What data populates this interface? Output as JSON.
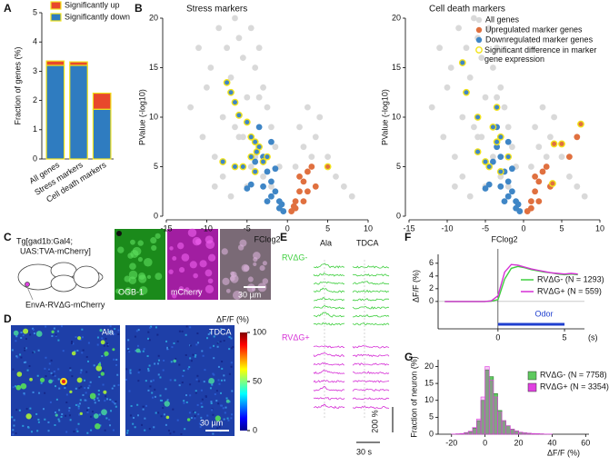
{
  "panel_labels": [
    "A",
    "B",
    "C",
    "D",
    "E",
    "F",
    "G"
  ],
  "chart_data": [
    {
      "type": "stacked_bar",
      "ylabel": "Fraction of genes (%)",
      "categories": [
        "All genes",
        "Stress markers",
        "Cell death markers"
      ],
      "series": [
        {
          "name": "Significantly down",
          "color": "#2f7cc0",
          "values": [
            3.2,
            3.2,
            1.7
          ]
        },
        {
          "name": "Significantly up",
          "color": "#e8482c",
          "values": [
            0.15,
            0.12,
            0.55
          ]
        }
      ],
      "edgecolor": "#f2e31b",
      "ylim": [
        0,
        5
      ],
      "yticks": [
        0,
        1,
        2,
        3,
        4,
        5
      ],
      "legend": "upper left"
    },
    {
      "type": "scatter",
      "title": "Stress markers",
      "xlabel": "FClog2",
      "ylabel": "PValue (-log10)",
      "xlim": [
        -15,
        10
      ],
      "ylim": [
        0,
        20
      ],
      "xticks": [
        -15,
        -10,
        -5,
        0,
        5,
        10
      ],
      "yticks": [
        0,
        5,
        10,
        15,
        20
      ],
      "series": [
        {
          "color": "#d9d9d9",
          "x": [
            -12,
            -11,
            -10.5,
            -10,
            -9.5,
            -9,
            -8.5,
            -8,
            -7.5,
            -7,
            -6.5,
            -6,
            -5.5,
            -5,
            -4.5,
            -4,
            -3.5,
            -3,
            -2.5,
            -2,
            -1.5,
            -1,
            -9,
            -8,
            -7,
            -6,
            -5,
            -4,
            -3,
            -2,
            1,
            1.5,
            2,
            2.5,
            3,
            3.5,
            4,
            5,
            6,
            7,
            8,
            -6.5,
            -5.5,
            -4.5,
            -3.5
          ],
          "values": [
            11,
            17,
            8,
            13,
            15,
            6,
            19,
            10,
            17,
            14,
            20,
            18,
            16,
            12,
            19,
            15,
            17,
            13,
            11,
            9,
            7,
            5,
            3,
            4,
            2,
            8,
            3,
            6,
            4,
            3,
            5,
            9,
            7,
            11,
            6,
            8,
            10,
            6,
            4,
            3,
            2,
            9,
            8,
            5,
            12
          ]
        },
        {
          "color": "#e0703f",
          "x": [
            0.5,
            1,
            1.5,
            2,
            2.5,
            3,
            1,
            2,
            3.5,
            1.5,
            0.8,
            2.5
          ],
          "values": [
            0.5,
            1.5,
            2.5,
            3.5,
            4.5,
            5,
            0.8,
            1.5,
            3,
            4,
            1,
            2.5
          ]
        },
        {
          "color": "#3f86c6",
          "x": [
            -0.5,
            -1,
            -1.5,
            -2,
            -2.5,
            -3,
            -3.5,
            -4,
            -1,
            -2,
            -3,
            -1.5,
            -2.5,
            -0.7,
            -4.5,
            -5,
            -3.5,
            -2
          ],
          "values": [
            0.5,
            1.5,
            2.5,
            3.5,
            4.5,
            6,
            7,
            5.5,
            0.8,
            2,
            3,
            4.8,
            1.5,
            1.2,
            3.2,
            2.8,
            9,
            7.5
          ]
        },
        {
          "color": "#f2e31b",
          "fill_negative": "#3f86c6",
          "fill_positive": "#e0703f",
          "x": [
            -7.5,
            -7,
            -6.5,
            -6,
            -5,
            -4.5,
            -4,
            -3.5,
            -3.8,
            -4.5,
            -3,
            -5.5,
            -6.5,
            -2.5,
            -4,
            -8,
            5
          ],
          "values": [
            13.5,
            12.5,
            11.5,
            10.2,
            9.5,
            8,
            7.5,
            7,
            6.5,
            6,
            5.5,
            5,
            5,
            6,
            4.5,
            5.5,
            5
          ]
        }
      ]
    },
    {
      "type": "scatter",
      "title": "Cell death markers",
      "xlabel": "FClog2",
      "ylabel": "PValue (-log10)",
      "xlim": [
        -15,
        10
      ],
      "ylim": [
        0,
        20
      ],
      "xticks": [
        -15,
        -10,
        -5,
        0,
        5,
        10
      ],
      "yticks": [
        0,
        5,
        10,
        15,
        20
      ],
      "legend": "upper right",
      "series": [
        {
          "name": "All genes",
          "color": "#d9d9d9",
          "x": [
            -12,
            -11,
            -10.5,
            -10,
            -9.5,
            -9,
            -8.5,
            -8,
            -7.5,
            -7,
            -6.5,
            -6,
            -5.5,
            -5,
            -4.5,
            -4,
            -3.5,
            -3,
            -2.5,
            -2,
            -1.5,
            -1,
            -9,
            -8,
            -7,
            -6,
            -5,
            -4,
            -3,
            -2,
            1,
            1.5,
            2,
            2.5,
            3,
            3.5,
            4,
            5,
            6,
            7,
            8,
            -6.5,
            -5.5,
            -4.5,
            -3.5
          ],
          "values": [
            11,
            17,
            8,
            13,
            15,
            6,
            19,
            10,
            17,
            14,
            20,
            18,
            16,
            12,
            19,
            15,
            17,
            13,
            11,
            9,
            7,
            5,
            3,
            4,
            2,
            8,
            3,
            6,
            4,
            3,
            5,
            9,
            7,
            11,
            6,
            8,
            10,
            6,
            4,
            3,
            2,
            9,
            8,
            5,
            12
          ]
        },
        {
          "name": "Upregulated marker genes",
          "color": "#e0703f",
          "x": [
            0.5,
            1,
            1.5,
            2,
            2.5,
            3,
            1,
            2,
            3.5,
            1.5,
            6,
            7
          ],
          "values": [
            0.5,
            1.5,
            2.5,
            3.5,
            4.5,
            5,
            0.8,
            1.5,
            3,
            4,
            6,
            8
          ]
        },
        {
          "name": "Downregulated marker genes",
          "color": "#3f86c6",
          "x": [
            -0.5,
            -1,
            -1.5,
            -2,
            -2.5,
            -3,
            -3.5,
            -4,
            -1,
            -2,
            -3,
            -1.5,
            -2.5,
            -0.7,
            -4.5,
            -5,
            -3.5,
            -2
          ],
          "values": [
            0.5,
            1.5,
            2.5,
            3.5,
            4.5,
            6,
            7,
            5.5,
            0.8,
            2,
            3,
            4.8,
            1.5,
            1.2,
            3.2,
            2.8,
            9,
            7.5
          ]
        },
        {
          "name": "Significant difference in marker gene expression",
          "color": "#f2e31b",
          "fill_negative": "#3f86c6",
          "fill_positive": "#e0703f",
          "x": [
            -8,
            -7.5,
            -3.5,
            -6,
            -4,
            -3,
            -3.5,
            -6,
            -2,
            -4.5,
            -3,
            -5,
            7.5,
            4,
            5,
            3.8
          ],
          "values": [
            15.5,
            12.5,
            11,
            10,
            9,
            8,
            7.5,
            6.5,
            6,
            5,
            4.5,
            5.5,
            9.3,
            7.3,
            7.3,
            3.3
          ]
        }
      ]
    },
    {
      "type": "line",
      "xlabel": "(s)",
      "ylabel": "ΔF/F (%)",
      "x": [
        -4,
        -3,
        -2,
        -1,
        -0.5,
        0,
        0.5,
        1,
        1.5,
        2,
        2.5,
        3,
        3.5,
        4,
        4.5,
        5,
        5.5,
        6
      ],
      "series": [
        {
          "name": "RVΔG- (N = 1293)",
          "color": "#3fcf3f",
          "values": [
            0,
            0,
            0,
            0,
            0.05,
            0.3,
            3.5,
            5.2,
            5.5,
            5.3,
            5.0,
            4.8,
            4.6,
            4.5,
            4.3,
            4.2,
            4.3,
            4.2
          ]
        },
        {
          "name": "RVΔG+ (N = 559)",
          "color": "#d62fd6",
          "values": [
            0,
            0,
            0,
            0,
            0.1,
            0.9,
            4.6,
            5.8,
            5.7,
            5.4,
            5.1,
            4.9,
            4.7,
            4.5,
            4.4,
            4.3,
            4.4,
            4.3
          ]
        }
      ],
      "stimulus": {
        "label": "Odor",
        "start": 0,
        "end": 5,
        "color": "#1f3fcf"
      },
      "xlim": [
        -4.5,
        6.5
      ],
      "ylim": [
        -4.3,
        7.4
      ],
      "xticks": [
        0,
        5
      ],
      "yticks": [
        0,
        2,
        4,
        6
      ],
      "legend": "lower right"
    },
    {
      "type": "histogram",
      "xlabel": "ΔF/F (%)",
      "ylabel": "Fraction of neuron (%)",
      "bins": [
        -20,
        -17.5,
        -15,
        -12.5,
        -10,
        -7.5,
        -5,
        -2.5,
        0,
        2.5,
        5,
        7.5,
        10,
        12.5,
        15,
        17.5,
        20,
        22.5,
        25,
        27.5,
        30,
        32.5,
        35,
        37.5,
        40
      ],
      "series": [
        {
          "name": "RVΔG- (N = 7758)",
          "color": "#5ec95e",
          "values": [
            0.05,
            0.1,
            0.2,
            0.4,
            0.8,
            1.8,
            4,
            10,
            19,
            17,
            12,
            7,
            4,
            2.5,
            1.5,
            1,
            0.6,
            0.4,
            0.3,
            0.2,
            0.15,
            0.1,
            0.05,
            0.05
          ]
        },
        {
          "name": "RVΔG+ (N = 3354)",
          "color": "#e040e0",
          "values": [
            0.05,
            0.1,
            0.2,
            0.5,
            0.9,
            2,
            4.5,
            11,
            20,
            16,
            11,
            6.5,
            4,
            2.5,
            1.5,
            1,
            0.6,
            0.4,
            0.3,
            0.2,
            0.15,
            0.1,
            0.05,
            0.05
          ]
        }
      ],
      "xlim": [
        -28,
        62
      ],
      "ylim": [
        0,
        22
      ],
      "xticks": [
        -20,
        0,
        20,
        40,
        60
      ],
      "yticks": [
        0,
        5,
        10,
        15,
        20
      ],
      "legend": "upper right"
    }
  ],
  "panel_c": {
    "transgenic": [
      "Tg[gad1b:Gal4;",
      "UAS:TVA-mCherry]"
    ],
    "virus": "EnvA-RVΔG-mCherry",
    "images": [
      "OGB-1",
      "mCherry"
    ],
    "scale": "30 µm"
  },
  "panel_d": {
    "images": [
      "Ala",
      "TDCA"
    ],
    "scale": "30 µm",
    "colorbar": {
      "label": "ΔF/F (%)",
      "lim": [
        0,
        100
      ],
      "ticks": [
        0,
        50,
        100
      ]
    }
  },
  "panel_e": {
    "odors": [
      "Ala",
      "TDCA"
    ],
    "groups": [
      "RVΔG-",
      "RVΔG+"
    ],
    "scale_y": "200 %",
    "scale_x": "30 s"
  }
}
